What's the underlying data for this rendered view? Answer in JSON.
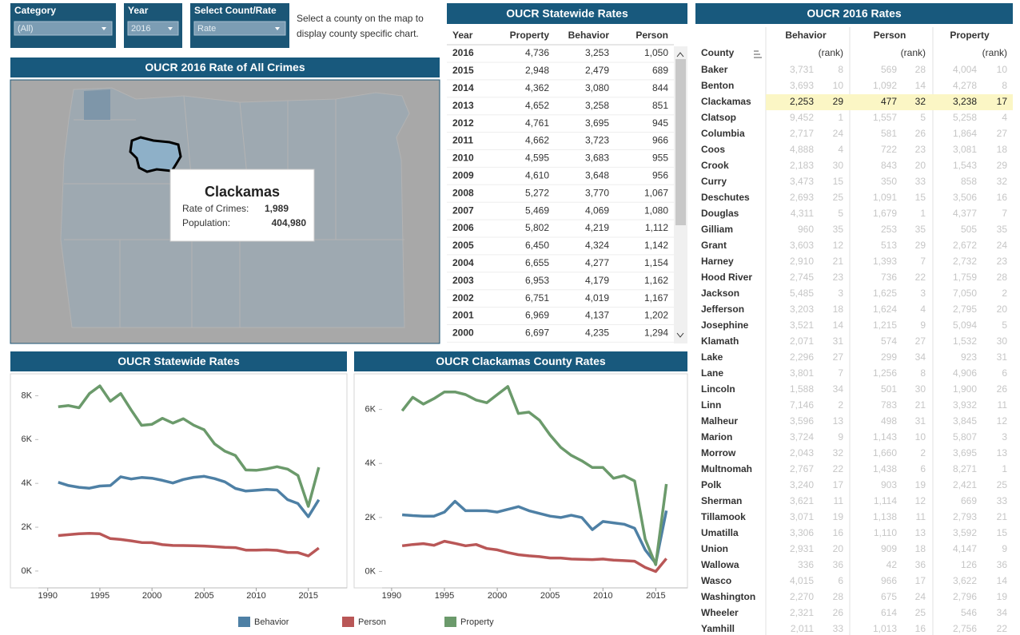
{
  "filters": [
    {
      "label": "Category",
      "value": "(All)"
    },
    {
      "label": "Year",
      "value": "2016"
    },
    {
      "label": "Select Count/Rate",
      "value": "Rate"
    }
  ],
  "instruction": "Select a county on the map to display county specific chart.",
  "map": {
    "title": "OUCR 2016 Rate of All Crimes",
    "tooltip": {
      "county": "Clackamas",
      "rate_label": "Rate of Crimes:",
      "rate": "1,989",
      "population_label": "Population:",
      "population": "404,980"
    }
  },
  "statewide_table": {
    "title": "OUCR Statewide Rates",
    "columns": [
      "Year",
      "Property",
      "Behavior",
      "Person"
    ],
    "rows": [
      [
        "2016",
        "4,736",
        "3,253",
        "1,050"
      ],
      [
        "2015",
        "2,948",
        "2,479",
        "689"
      ],
      [
        "2014",
        "4,362",
        "3,080",
        "844"
      ],
      [
        "2013",
        "4,652",
        "3,258",
        "851"
      ],
      [
        "2012",
        "4,761",
        "3,695",
        "945"
      ],
      [
        "2011",
        "4,662",
        "3,723",
        "966"
      ],
      [
        "2010",
        "4,595",
        "3,683",
        "955"
      ],
      [
        "2009",
        "4,610",
        "3,648",
        "956"
      ],
      [
        "2008",
        "5,272",
        "3,770",
        "1,067"
      ],
      [
        "2007",
        "5,469",
        "4,069",
        "1,080"
      ],
      [
        "2006",
        "5,802",
        "4,219",
        "1,112"
      ],
      [
        "2005",
        "6,450",
        "4,324",
        "1,142"
      ],
      [
        "2004",
        "6,655",
        "4,277",
        "1,154"
      ],
      [
        "2003",
        "6,953",
        "4,179",
        "1,162"
      ],
      [
        "2002",
        "6,751",
        "4,019",
        "1,167"
      ],
      [
        "2001",
        "6,969",
        "4,137",
        "1,202"
      ],
      [
        "2000",
        "6,697",
        "4,235",
        "1,294"
      ]
    ]
  },
  "county_table": {
    "title": "OUCR 2016 Rates",
    "groups": [
      "Behavior",
      "Person",
      "Property"
    ],
    "county_header": "County",
    "rank_header": "(rank)",
    "highlight": "Clackamas",
    "rows": [
      [
        "Baker",
        "3,731",
        "8",
        "569",
        "28",
        "4,004",
        "10"
      ],
      [
        "Benton",
        "3,693",
        "10",
        "1,092",
        "14",
        "4,278",
        "8"
      ],
      [
        "Clackamas",
        "2,253",
        "29",
        "477",
        "32",
        "3,238",
        "17"
      ],
      [
        "Clatsop",
        "9,452",
        "1",
        "1,557",
        "5",
        "5,258",
        "4"
      ],
      [
        "Columbia",
        "2,717",
        "24",
        "581",
        "26",
        "1,864",
        "27"
      ],
      [
        "Coos",
        "4,888",
        "4",
        "722",
        "23",
        "3,081",
        "18"
      ],
      [
        "Crook",
        "2,183",
        "30",
        "843",
        "20",
        "1,543",
        "29"
      ],
      [
        "Curry",
        "3,473",
        "15",
        "350",
        "33",
        "858",
        "32"
      ],
      [
        "Deschutes",
        "2,693",
        "25",
        "1,091",
        "15",
        "3,506",
        "16"
      ],
      [
        "Douglas",
        "4,311",
        "5",
        "1,679",
        "1",
        "4,377",
        "7"
      ],
      [
        "Gilliam",
        "960",
        "35",
        "253",
        "35",
        "505",
        "35"
      ],
      [
        "Grant",
        "3,603",
        "12",
        "513",
        "29",
        "2,672",
        "24"
      ],
      [
        "Harney",
        "2,910",
        "21",
        "1,393",
        "7",
        "2,732",
        "23"
      ],
      [
        "Hood River",
        "2,745",
        "23",
        "736",
        "22",
        "1,759",
        "28"
      ],
      [
        "Jackson",
        "5,485",
        "3",
        "1,625",
        "3",
        "7,050",
        "2"
      ],
      [
        "Jefferson",
        "3,203",
        "18",
        "1,624",
        "4",
        "2,795",
        "20"
      ],
      [
        "Josephine",
        "3,521",
        "14",
        "1,215",
        "9",
        "5,094",
        "5"
      ],
      [
        "Klamath",
        "2,071",
        "31",
        "574",
        "27",
        "1,532",
        "30"
      ],
      [
        "Lake",
        "2,296",
        "27",
        "299",
        "34",
        "923",
        "31"
      ],
      [
        "Lane",
        "3,801",
        "7",
        "1,256",
        "8",
        "4,906",
        "6"
      ],
      [
        "Lincoln",
        "1,588",
        "34",
        "501",
        "30",
        "1,900",
        "26"
      ],
      [
        "Linn",
        "7,146",
        "2",
        "783",
        "21",
        "3,932",
        "11"
      ],
      [
        "Malheur",
        "3,596",
        "13",
        "498",
        "31",
        "3,845",
        "12"
      ],
      [
        "Marion",
        "3,724",
        "9",
        "1,143",
        "10",
        "5,807",
        "3"
      ],
      [
        "Morrow",
        "2,043",
        "32",
        "1,660",
        "2",
        "3,695",
        "13"
      ],
      [
        "Multnomah",
        "2,767",
        "22",
        "1,438",
        "6",
        "8,271",
        "1"
      ],
      [
        "Polk",
        "3,240",
        "17",
        "903",
        "19",
        "2,421",
        "25"
      ],
      [
        "Sherman",
        "3,621",
        "11",
        "1,114",
        "12",
        "669",
        "33"
      ],
      [
        "Tillamook",
        "3,071",
        "19",
        "1,138",
        "11",
        "2,793",
        "21"
      ],
      [
        "Umatilla",
        "3,306",
        "16",
        "1,110",
        "13",
        "3,592",
        "15"
      ],
      [
        "Union",
        "2,931",
        "20",
        "909",
        "18",
        "4,147",
        "9"
      ],
      [
        "Wallowa",
        "336",
        "36",
        "42",
        "36",
        "126",
        "36"
      ],
      [
        "Wasco",
        "4,015",
        "6",
        "966",
        "17",
        "3,622",
        "14"
      ],
      [
        "Washington",
        "2,270",
        "28",
        "675",
        "24",
        "2,796",
        "19"
      ],
      [
        "Wheeler",
        "2,321",
        "26",
        "614",
        "25",
        "546",
        "34"
      ],
      [
        "Yamhill",
        "2,011",
        "33",
        "1,013",
        "16",
        "2,756",
        "22"
      ]
    ]
  },
  "chart_data": [
    {
      "type": "line",
      "title": "OUCR Statewide Rates",
      "x": [
        1991,
        1992,
        1993,
        1994,
        1995,
        1996,
        1997,
        1998,
        1999,
        2000,
        2001,
        2002,
        2003,
        2004,
        2005,
        2006,
        2007,
        2008,
        2009,
        2010,
        2011,
        2012,
        2013,
        2014,
        2015,
        2016
      ],
      "series": [
        {
          "name": "Behavior",
          "color": "#4e80a5",
          "values": [
            4050,
            3900,
            3820,
            3780,
            3880,
            3900,
            4300,
            4200,
            4270,
            4235,
            4137,
            4019,
            4179,
            4277,
            4324,
            4219,
            4069,
            3770,
            3648,
            3683,
            3723,
            3695,
            3258,
            3080,
            2479,
            3253
          ]
        },
        {
          "name": "Person",
          "color": "#b95757",
          "values": [
            1620,
            1660,
            1700,
            1720,
            1700,
            1480,
            1440,
            1380,
            1300,
            1294,
            1202,
            1167,
            1162,
            1154,
            1142,
            1112,
            1080,
            1067,
            956,
            955,
            966,
            945,
            851,
            844,
            689,
            1050
          ]
        },
        {
          "name": "Property",
          "color": "#6b9a6b",
          "values": [
            7500,
            7550,
            7450,
            8100,
            8450,
            7750,
            8100,
            7350,
            6650,
            6697,
            6969,
            6751,
            6953,
            6655,
            6450,
            5802,
            5469,
            5272,
            4610,
            4595,
            4662,
            4761,
            4652,
            4362,
            2948,
            4736
          ]
        }
      ],
      "xlim": [
        1989.1,
        2018.7
      ],
      "xticks": [
        1990,
        1995,
        2000,
        2005,
        2010,
        2015
      ],
      "ylim": [
        -550,
        9000
      ],
      "yticks": [
        {
          "value": 0,
          "label": "0K"
        },
        {
          "value": 2000,
          "label": "2K"
        },
        {
          "value": 4000,
          "label": "4K"
        },
        {
          "value": 6000,
          "label": "6K"
        },
        {
          "value": 8000,
          "label": "8K"
        }
      ],
      "grid": false
    },
    {
      "type": "line",
      "title": "OUCR Clackamas County Rates",
      "x": [
        1991,
        1992,
        1993,
        1994,
        1995,
        1996,
        1997,
        1998,
        1999,
        2000,
        2001,
        2002,
        2003,
        2004,
        2005,
        2006,
        2007,
        2008,
        2009,
        2010,
        2011,
        2012,
        2013,
        2014,
        2015,
        2016
      ],
      "series": [
        {
          "name": "Behavior",
          "color": "#4e80a5",
          "values": [
            2100,
            2070,
            2050,
            2050,
            2200,
            2600,
            2250,
            2250,
            2250,
            2200,
            2300,
            2400,
            2250,
            2150,
            2050,
            2000,
            2080,
            2000,
            1550,
            1850,
            1800,
            1750,
            1600,
            800,
            300,
            2253
          ]
        },
        {
          "name": "Person",
          "color": "#b95757",
          "values": [
            950,
            1000,
            1030,
            970,
            1120,
            1040,
            950,
            1000,
            850,
            800,
            700,
            620,
            580,
            550,
            500,
            500,
            460,
            450,
            440,
            460,
            420,
            400,
            380,
            150,
            0,
            477
          ]
        },
        {
          "name": "Property",
          "color": "#6b9a6b",
          "values": [
            5950,
            6450,
            6200,
            6400,
            6650,
            6650,
            6550,
            6350,
            6250,
            6550,
            6850,
            5850,
            5900,
            5600,
            5050,
            4600,
            4300,
            4100,
            3850,
            3850,
            3450,
            3550,
            3350,
            1200,
            250,
            3238
          ]
        }
      ],
      "xlim": [
        1989.1,
        2018.0
      ],
      "xticks": [
        1990,
        1995,
        2000,
        2005,
        2010,
        2015
      ],
      "ylim": [
        -430,
        7320
      ],
      "yticks": [
        {
          "value": 0,
          "label": "0K"
        },
        {
          "value": 2000,
          "label": "2K"
        },
        {
          "value": 4000,
          "label": "4K"
        },
        {
          "value": 6000,
          "label": "6K"
        }
      ],
      "grid": false
    }
  ]
}
